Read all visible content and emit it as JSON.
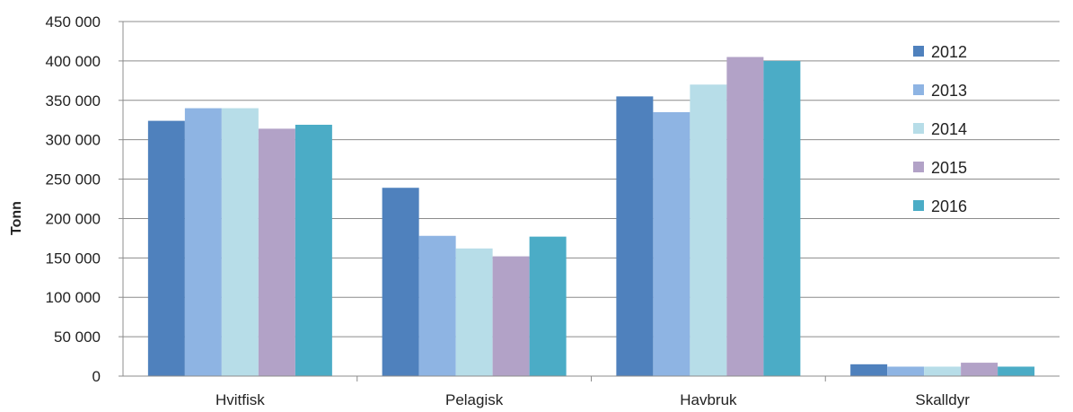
{
  "chart_data": {
    "type": "bar",
    "title": "",
    "xlabel": "",
    "ylabel": "Tonn",
    "categories": [
      "Hvitfisk",
      "Pelagisk",
      "Havbruk",
      "Skalldyr"
    ],
    "series": [
      {
        "name": "2012",
        "color": "#4f81bd",
        "values": [
          324000,
          239000,
          355000,
          15000
        ]
      },
      {
        "name": "2013",
        "color": "#8eb4e3",
        "values": [
          340000,
          178000,
          335000,
          12000
        ]
      },
      {
        "name": "2014",
        "color": "#b7dde8",
        "values": [
          340000,
          162000,
          370000,
          12000
        ]
      },
      {
        "name": "2015",
        "color": "#b2a2c7",
        "values": [
          314000,
          152000,
          405000,
          17000
        ]
      },
      {
        "name": "2016",
        "color": "#4bacc6",
        "values": [
          319000,
          177000,
          400000,
          12000
        ]
      }
    ],
    "ylim": [
      0,
      450000
    ],
    "yticks": [
      0,
      50000,
      100000,
      150000,
      200000,
      250000,
      300000,
      350000,
      400000,
      450000
    ],
    "ytick_labels": [
      "0",
      "50 000",
      "100 000",
      "150 000",
      "200 000",
      "250 000",
      "300 000",
      "350 000",
      "400 000",
      "450 000"
    ],
    "grid": true,
    "legend_position": "right"
  }
}
